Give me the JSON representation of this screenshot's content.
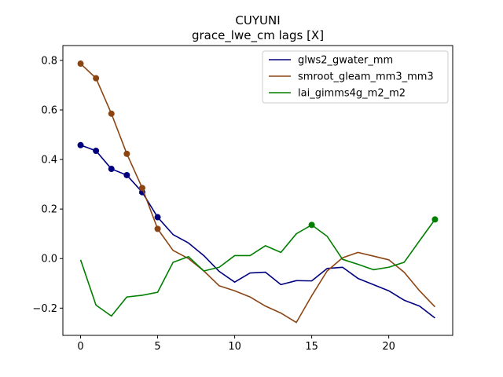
{
  "chart_data": {
    "type": "line",
    "title": "CUYUNI",
    "subtitle": "grace_lwe_cm lags [X]",
    "xlabel": "",
    "ylabel": "",
    "xlim": [
      -1.15,
      24.15
    ],
    "ylim": [
      -0.31,
      0.86
    ],
    "xticks": [
      0,
      5,
      10,
      15,
      20
    ],
    "yticks": [
      -0.2,
      0.0,
      0.2,
      0.4,
      0.6,
      0.8
    ],
    "ytick_labels": [
      "−0.2",
      "0.0",
      "0.2",
      "0.4",
      "0.6",
      "0.8"
    ],
    "grid": false,
    "legend_position": "upper right",
    "x": [
      0,
      1,
      2,
      3,
      4,
      5,
      6,
      7,
      8,
      9,
      10,
      11,
      12,
      13,
      14,
      15,
      16,
      17,
      18,
      19,
      20,
      21,
      22,
      23
    ],
    "series": [
      {
        "name": "glws2_gwater_mm",
        "color": "#00007f",
        "values": [
          0.458,
          0.435,
          0.362,
          0.337,
          0.268,
          0.167,
          0.097,
          0.063,
          0.012,
          -0.052,
          -0.095,
          -0.058,
          -0.055,
          -0.105,
          -0.089,
          -0.09,
          -0.04,
          -0.035,
          -0.08,
          -0.105,
          -0.13,
          -0.168,
          -0.192,
          -0.24
        ],
        "markers": [
          0,
          1,
          2,
          3,
          4,
          5
        ]
      },
      {
        "name": "smroot_gleam_mm3_mm3",
        "color": "#8b4513",
        "values": [
          0.787,
          0.728,
          0.585,
          0.423,
          0.285,
          0.12,
          0.033,
          0.0,
          -0.05,
          -0.11,
          -0.13,
          -0.155,
          -0.192,
          -0.22,
          -0.258,
          -0.15,
          -0.05,
          0.003,
          0.025,
          0.01,
          -0.005,
          -0.055,
          -0.13,
          -0.195
        ],
        "markers": [
          0,
          1,
          2,
          3,
          4,
          5
        ]
      },
      {
        "name": "lai_gimms4g_m2_m2",
        "color": "#007f00",
        "values": [
          -0.005,
          -0.188,
          -0.232,
          -0.155,
          -0.148,
          -0.136,
          -0.015,
          0.008,
          -0.05,
          -0.035,
          0.012,
          0.012,
          0.052,
          0.025,
          0.1,
          0.136,
          0.09,
          -0.003,
          -0.023,
          -0.045,
          -0.035,
          -0.015,
          0.072,
          0.158
        ],
        "markers": [
          15,
          23
        ]
      }
    ]
  }
}
